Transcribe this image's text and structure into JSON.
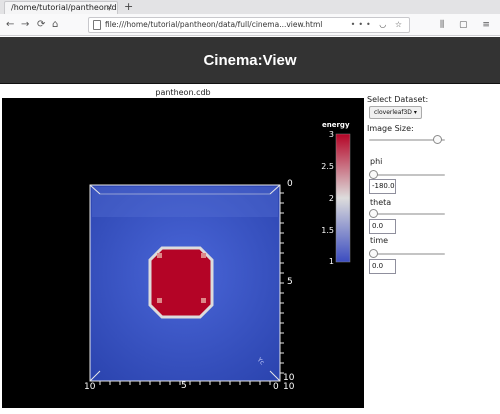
{
  "browser": {
    "tab_title": "/home/tutorial/pantheon/data",
    "tab_close": "×",
    "new_tab": "+",
    "url": "file:///home/tutorial/pantheon/data/full/cinema...view.html",
    "icons": [
      "back-icon",
      "forward-icon",
      "reload-icon",
      "home-icon",
      "page-info-icon",
      "more-icon",
      "pocket-icon",
      "bookmark-star-icon",
      "library-icon",
      "sidebar-icon",
      "menu-icon"
    ],
    "glyphs": {
      "back": "←",
      "forward": "→",
      "reload": "⟳",
      "home": "⌂",
      "more": "•••",
      "pocket": "◡",
      "star": "☆",
      "library": "⫼",
      "sidebar": "▢",
      "menu": "≡"
    }
  },
  "header": {
    "title": "Cinema:View"
  },
  "viewer": {
    "database_caption": "pantheon.cdb",
    "colorbar": {
      "title": "energy",
      "ticks": [
        "3",
        "2.5",
        "2",
        "1.5",
        "1"
      ],
      "colors": {
        "high": "#b40426",
        "mid": "#dddcdc",
        "low": "#3b4cc0"
      }
    },
    "axis_labels": {
      "top_right": "0",
      "right_mid": "5",
      "right_bottom_a": "10",
      "right_bottom_b": "10",
      "bottom_left": "10",
      "bottom_mid": "5",
      "bottom_right": "0",
      "rotated": "Yc"
    },
    "volume_colors": {
      "background": "#000000",
      "cube": "#3a56c8",
      "blob": "#b40426",
      "blob_edge": "#dddcdc"
    }
  },
  "controls": {
    "dataset_label": "Select Dataset:",
    "dataset_value": "cloverleaf3D",
    "dataset_arrow": "▾",
    "image_size_label": "Image Size:",
    "image_size_fraction": 0.95,
    "phi_label": "phi",
    "phi_value": "-180.0",
    "phi_fraction": 0.0,
    "theta_label": "theta",
    "theta_value": "0.0",
    "theta_fraction": 0.0,
    "time_label": "time",
    "time_value": "0.0",
    "time_fraction": 0.0
  }
}
